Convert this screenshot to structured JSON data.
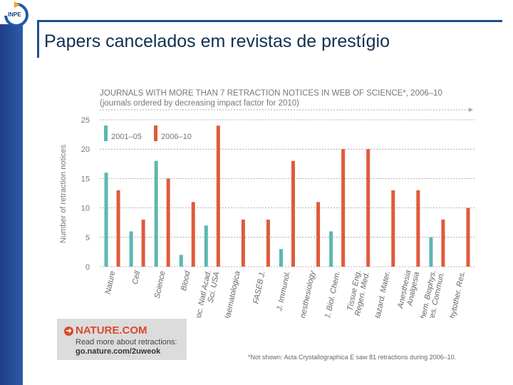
{
  "slide": {
    "title": "Papers cancelados em revistas de prestígio",
    "logo_text": "INPE"
  },
  "chart_data": {
    "type": "bar",
    "title": "JOURNALS WITH MORE THAN 7 RETRACTION NOTICES IN WEB OF SCIENCE*, 2006–10",
    "subtitle": "(journals ordered by decreasing impact factor for 2010)",
    "ylabel": "Number of retraction notices",
    "xlabel": "",
    "ylim": [
      0,
      25
    ],
    "yticks": [
      0,
      5,
      10,
      15,
      20,
      25
    ],
    "grid": true,
    "legend_position": "top-left",
    "categories": [
      "Nature",
      "Cell",
      "Science",
      "Blood",
      "Proc. Natl Acad. Sci. USA",
      "Haematologica",
      "FASEB J.",
      "J. Immunol.",
      "Anesthesiology",
      "J. Biol. Chem.",
      "Tissue Eng. Regen. Med.",
      "J. Hazard. Mater.",
      "Anesthesia Analgesia",
      "Biochem. Biophys. Res. Commun.",
      "Phytother. Res."
    ],
    "category_lines": [
      [
        "Nature"
      ],
      [
        "Cell"
      ],
      [
        "Science"
      ],
      [
        "Blood"
      ],
      [
        "Proc. Natl Acad.",
        "Sci. USA"
      ],
      [
        "Haematologica"
      ],
      [
        "FASEB J."
      ],
      [
        "J. Immunol."
      ],
      [
        "Anesthesiology"
      ],
      [
        "J. Biol. Chem."
      ],
      [
        "Tissue Eng.",
        "Regen. Med."
      ],
      [
        "J. Hazard. Mater."
      ],
      [
        "Anesthesia",
        "Analgesia"
      ],
      [
        "Biochem. Biophys.",
        "Res. Commun."
      ],
      [
        "Phytother. Res."
      ]
    ],
    "series": [
      {
        "name": "2001–05",
        "color": "#5bb8b0",
        "values": [
          16,
          6,
          18,
          2,
          7,
          0,
          0,
          3,
          0,
          6,
          0,
          0,
          0,
          5,
          0
        ]
      },
      {
        "name": "2006–10",
        "color": "#e05a3c",
        "values": [
          13,
          8,
          15,
          11,
          24,
          8,
          8,
          18,
          11,
          20,
          20,
          13,
          13,
          8,
          10
        ]
      }
    ]
  },
  "promo": {
    "site": "NATURE.COM",
    "text": "Read more about retractions:",
    "link": "go.nature.com/2uweok"
  },
  "footnote": "*Not shown: Acta Crystallographica E saw 81 retractions during 2006–10."
}
